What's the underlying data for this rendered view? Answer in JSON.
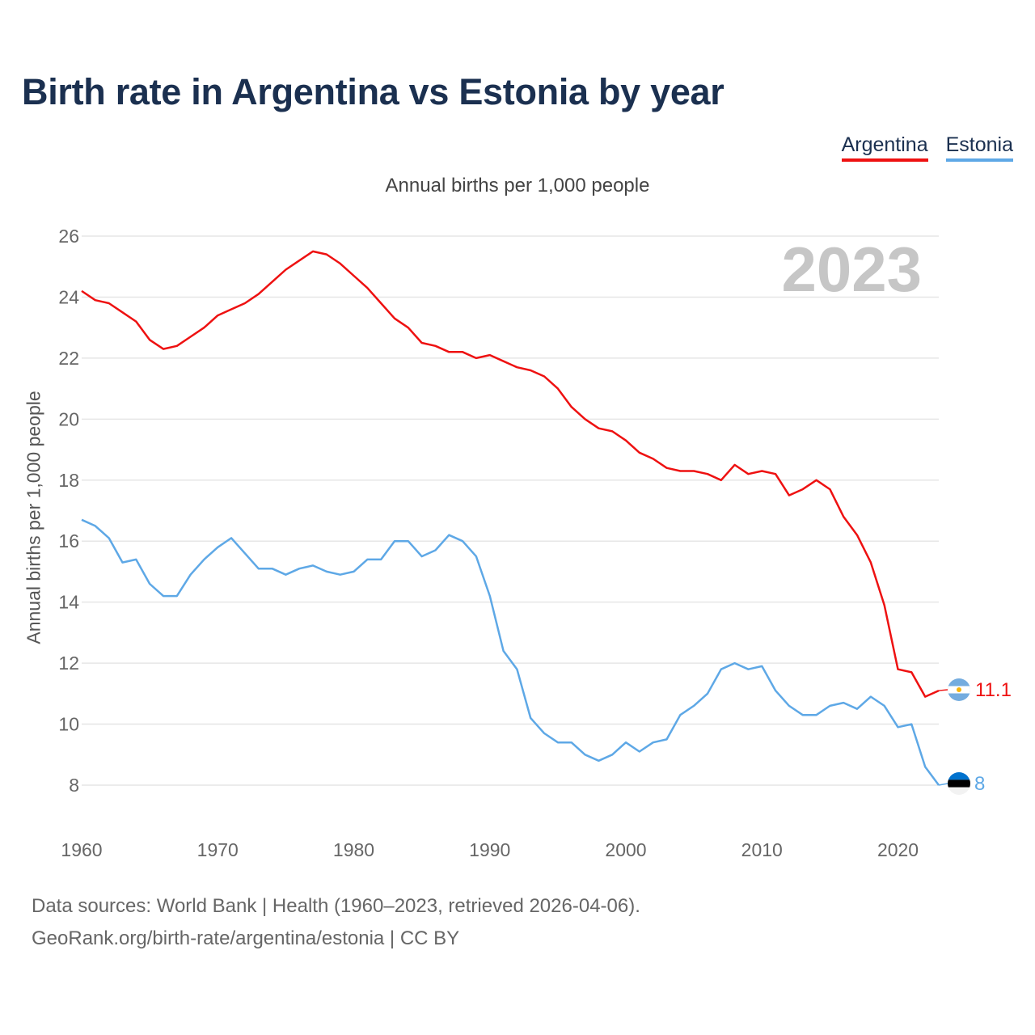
{
  "title": "Birth rate in Argentina vs Estonia by year",
  "legend": {
    "argentina": "Argentina",
    "estonia": "Estonia"
  },
  "subtitle": "Annual births per 1,000 people",
  "current_year": "2023",
  "footer": {
    "sources": "Data sources: World Bank | Health (1960–2023, retrieved 2026-04-06).",
    "url": "GeoRank.org/birth-rate/argentina/estonia | CC BY"
  },
  "colors": {
    "argentina": "#ee1111",
    "estonia": "#5ea8e6",
    "title": "#1b3050",
    "grid": "#e6e6e6"
  },
  "chart_data": {
    "type": "line",
    "title": "Birth rate in Argentina vs Estonia by year",
    "xlabel": "",
    "ylabel": "Annual births per 1,000 people",
    "xlim": [
      1960,
      2023
    ],
    "ylim": [
      8,
      26
    ],
    "yticks": [
      8,
      10,
      12,
      14,
      16,
      18,
      20,
      22,
      24,
      26
    ],
    "xticks": [
      1960,
      1970,
      1980,
      1990,
      2000,
      2010,
      2020
    ],
    "x": [
      1960,
      1961,
      1962,
      1963,
      1964,
      1965,
      1966,
      1967,
      1968,
      1969,
      1970,
      1971,
      1972,
      1973,
      1974,
      1975,
      1976,
      1977,
      1978,
      1979,
      1980,
      1981,
      1982,
      1983,
      1984,
      1985,
      1986,
      1987,
      1988,
      1989,
      1990,
      1991,
      1992,
      1993,
      1994,
      1995,
      1996,
      1997,
      1998,
      1999,
      2000,
      2001,
      2002,
      2003,
      2004,
      2005,
      2006,
      2007,
      2008,
      2009,
      2010,
      2011,
      2012,
      2013,
      2014,
      2015,
      2016,
      2017,
      2018,
      2019,
      2020,
      2021,
      2022,
      2023
    ],
    "series": [
      {
        "name": "Argentina",
        "end_label": "11.1",
        "values": [
          24.2,
          23.9,
          23.8,
          23.5,
          23.2,
          22.6,
          22.3,
          22.4,
          22.7,
          23.0,
          23.4,
          23.6,
          23.8,
          24.1,
          24.5,
          24.9,
          25.2,
          25.5,
          25.4,
          25.1,
          24.7,
          24.3,
          23.8,
          23.3,
          23.0,
          22.5,
          22.4,
          22.2,
          22.2,
          22.0,
          22.1,
          21.9,
          21.7,
          21.6,
          21.4,
          21.0,
          20.4,
          20.0,
          19.7,
          19.6,
          19.3,
          18.9,
          18.7,
          18.4,
          18.3,
          18.3,
          18.2,
          18.0,
          18.5,
          18.2,
          18.3,
          18.2,
          17.5,
          17.7,
          18.0,
          17.7,
          16.8,
          16.2,
          15.3,
          13.9,
          11.8,
          11.7,
          10.9,
          11.1
        ]
      },
      {
        "name": "Estonia",
        "end_label": "8",
        "values": [
          16.7,
          16.5,
          16.1,
          15.3,
          15.4,
          14.6,
          14.2,
          14.2,
          14.9,
          15.4,
          15.8,
          16.1,
          15.6,
          15.1,
          15.1,
          14.9,
          15.1,
          15.2,
          15.0,
          14.9,
          15.0,
          15.4,
          15.4,
          16.0,
          16.0,
          15.5,
          15.7,
          16.2,
          16.0,
          15.5,
          14.2,
          12.4,
          11.8,
          10.2,
          9.7,
          9.4,
          9.4,
          9.0,
          8.8,
          9.0,
          9.4,
          9.1,
          9.4,
          9.5,
          10.3,
          10.6,
          11.0,
          11.8,
          12.0,
          11.8,
          11.9,
          11.1,
          10.6,
          10.3,
          10.3,
          10.6,
          10.7,
          10.5,
          10.9,
          10.6,
          9.9,
          10.0,
          8.6,
          8.0
        ]
      }
    ]
  }
}
